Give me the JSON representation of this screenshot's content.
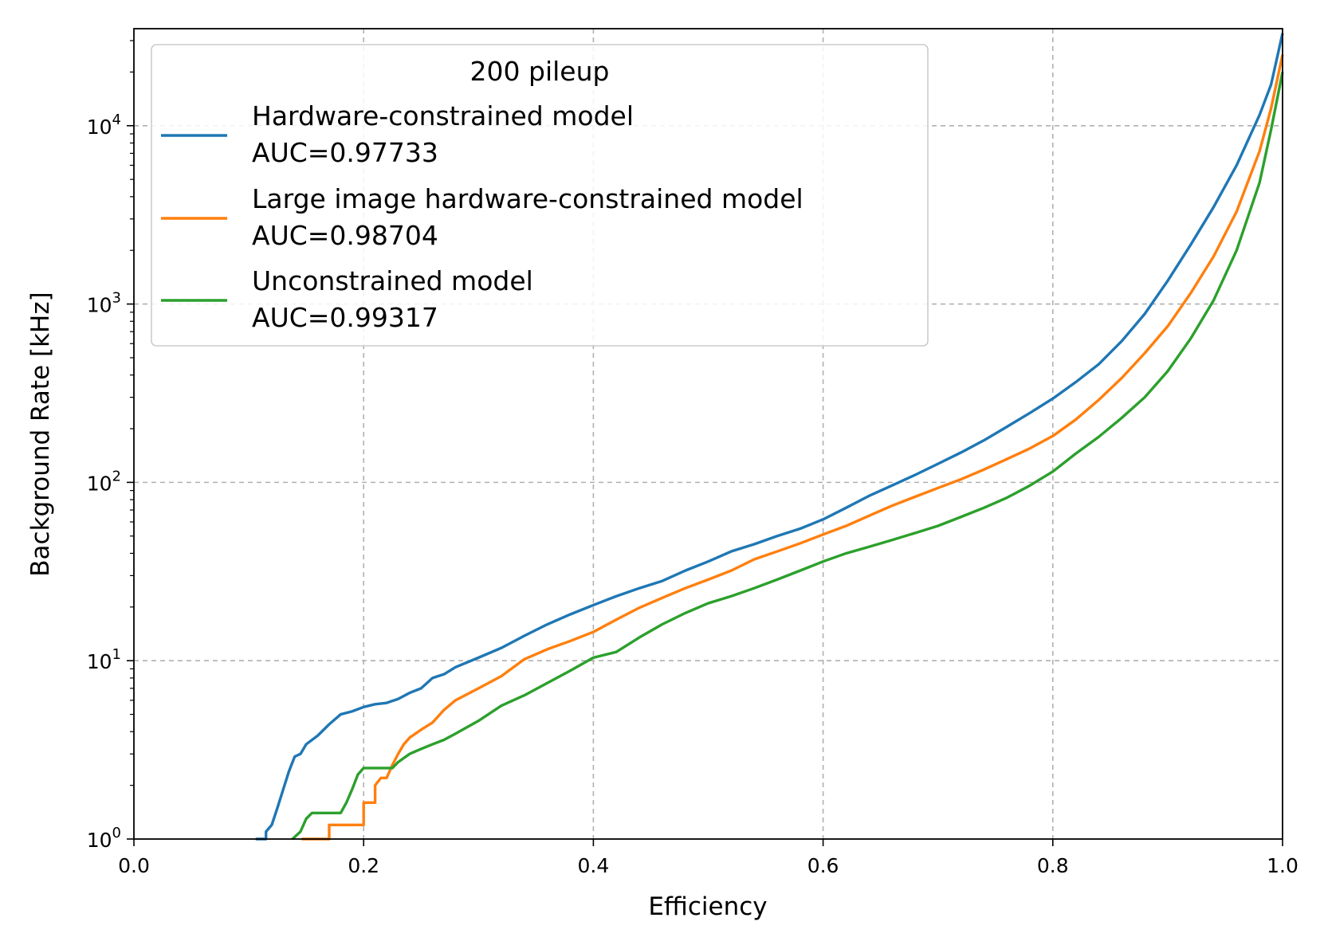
{
  "chart_data": {
    "type": "line",
    "title": "",
    "xlabel": "Efficiency",
    "ylabel": "Background Rate [kHz]",
    "xscale": "linear",
    "yscale": "log",
    "xlim": [
      0.0,
      1.0
    ],
    "ylim": [
      1,
      35000
    ],
    "grid": true,
    "x_ticks": [
      0.0,
      0.2,
      0.4,
      0.6,
      0.8,
      1.0
    ],
    "x_tick_labels": [
      "0.0",
      "0.2",
      "0.4",
      "0.6",
      "0.8",
      "1.0"
    ],
    "y_ticks": [
      {
        "value": 1,
        "base": "10",
        "exp": "0"
      },
      {
        "value": 10,
        "base": "10",
        "exp": "1"
      },
      {
        "value": 100,
        "base": "10",
        "exp": "2"
      },
      {
        "value": 1000,
        "base": "10",
        "exp": "3"
      },
      {
        "value": 10000,
        "base": "10",
        "exp": "4"
      }
    ],
    "legend": {
      "title": "200 pileup",
      "location": "upper-left"
    },
    "series": [
      {
        "name": "Hardware-constrained model",
        "auc_label": "AUC=0.97733",
        "color": "#1f77b4",
        "points": [
          [
            0.106,
            1.0
          ],
          [
            0.115,
            1.0
          ],
          [
            0.115,
            1.1
          ],
          [
            0.12,
            1.2
          ],
          [
            0.125,
            1.5
          ],
          [
            0.13,
            1.9
          ],
          [
            0.135,
            2.4
          ],
          [
            0.14,
            2.9
          ],
          [
            0.145,
            3.0
          ],
          [
            0.15,
            3.4
          ],
          [
            0.16,
            3.8
          ],
          [
            0.17,
            4.4
          ],
          [
            0.18,
            5.0
          ],
          [
            0.19,
            5.2
          ],
          [
            0.2,
            5.5
          ],
          [
            0.21,
            5.7
          ],
          [
            0.22,
            5.8
          ],
          [
            0.23,
            6.1
          ],
          [
            0.24,
            6.6
          ],
          [
            0.25,
            7.0
          ],
          [
            0.26,
            8.0
          ],
          [
            0.27,
            8.4
          ],
          [
            0.28,
            9.2
          ],
          [
            0.3,
            10.4
          ],
          [
            0.32,
            11.8
          ],
          [
            0.34,
            13.8
          ],
          [
            0.36,
            16.0
          ],
          [
            0.38,
            18.2
          ],
          [
            0.4,
            20.5
          ],
          [
            0.42,
            23.0
          ],
          [
            0.44,
            25.5
          ],
          [
            0.46,
            28.0
          ],
          [
            0.48,
            32.0
          ],
          [
            0.5,
            36.0
          ],
          [
            0.52,
            41.0
          ],
          [
            0.54,
            45.0
          ],
          [
            0.56,
            50.0
          ],
          [
            0.58,
            55.0
          ],
          [
            0.6,
            62.0
          ],
          [
            0.62,
            72.0
          ],
          [
            0.64,
            84.0
          ],
          [
            0.66,
            96.0
          ],
          [
            0.68,
            110.0
          ],
          [
            0.7,
            127.0
          ],
          [
            0.72,
            147.0
          ],
          [
            0.74,
            172.0
          ],
          [
            0.76,
            205.0
          ],
          [
            0.78,
            245.0
          ],
          [
            0.8,
            295.0
          ],
          [
            0.82,
            365.0
          ],
          [
            0.84,
            460.0
          ],
          [
            0.86,
            620.0
          ],
          [
            0.88,
            880.0
          ],
          [
            0.9,
            1350.0
          ],
          [
            0.92,
            2150.0
          ],
          [
            0.94,
            3500.0
          ],
          [
            0.96,
            6000.0
          ],
          [
            0.98,
            11500.0
          ],
          [
            0.99,
            17000.0
          ],
          [
            1.0,
            33000.0
          ]
        ]
      },
      {
        "name": "Large image hardware-constrained model",
        "auc_label": "AUC=0.98704",
        "color": "#ff7f0e",
        "points": [
          [
            0.146,
            1.0
          ],
          [
            0.17,
            1.0
          ],
          [
            0.17,
            1.2
          ],
          [
            0.2,
            1.2
          ],
          [
            0.2,
            1.6
          ],
          [
            0.21,
            1.6
          ],
          [
            0.21,
            2.0
          ],
          [
            0.215,
            2.2
          ],
          [
            0.22,
            2.2
          ],
          [
            0.225,
            2.6
          ],
          [
            0.23,
            3.0
          ],
          [
            0.235,
            3.4
          ],
          [
            0.24,
            3.7
          ],
          [
            0.25,
            4.1
          ],
          [
            0.26,
            4.5
          ],
          [
            0.27,
            5.3
          ],
          [
            0.28,
            6.0
          ],
          [
            0.3,
            7.0
          ],
          [
            0.32,
            8.2
          ],
          [
            0.34,
            10.2
          ],
          [
            0.36,
            11.6
          ],
          [
            0.38,
            12.9
          ],
          [
            0.4,
            14.5
          ],
          [
            0.42,
            17.0
          ],
          [
            0.44,
            19.8
          ],
          [
            0.46,
            22.5
          ],
          [
            0.48,
            25.5
          ],
          [
            0.5,
            28.5
          ],
          [
            0.52,
            32.0
          ],
          [
            0.54,
            37.0
          ],
          [
            0.56,
            41.0
          ],
          [
            0.58,
            45.5
          ],
          [
            0.6,
            51.0
          ],
          [
            0.62,
            57.0
          ],
          [
            0.64,
            65.0
          ],
          [
            0.66,
            74.0
          ],
          [
            0.68,
            83.0
          ],
          [
            0.7,
            93.0
          ],
          [
            0.72,
            104.0
          ],
          [
            0.74,
            118.0
          ],
          [
            0.76,
            135.0
          ],
          [
            0.78,
            155.0
          ],
          [
            0.8,
            182.0
          ],
          [
            0.82,
            225.0
          ],
          [
            0.84,
            290.0
          ],
          [
            0.86,
            385.0
          ],
          [
            0.88,
            530.0
          ],
          [
            0.9,
            750.0
          ],
          [
            0.92,
            1150.0
          ],
          [
            0.94,
            1850.0
          ],
          [
            0.96,
            3300.0
          ],
          [
            0.98,
            7200.0
          ],
          [
            0.99,
            12500.0
          ],
          [
            1.0,
            25000.0
          ]
        ]
      },
      {
        "name": "Unconstrained model",
        "auc_label": "AUC=0.99317",
        "color": "#2ca02c",
        "points": [
          [
            0.138,
            1.0
          ],
          [
            0.145,
            1.1
          ],
          [
            0.15,
            1.3
          ],
          [
            0.155,
            1.4
          ],
          [
            0.18,
            1.4
          ],
          [
            0.185,
            1.6
          ],
          [
            0.19,
            1.9
          ],
          [
            0.195,
            2.3
          ],
          [
            0.2,
            2.5
          ],
          [
            0.225,
            2.5
          ],
          [
            0.23,
            2.7
          ],
          [
            0.24,
            3.0
          ],
          [
            0.25,
            3.2
          ],
          [
            0.26,
            3.4
          ],
          [
            0.27,
            3.6
          ],
          [
            0.28,
            3.9
          ],
          [
            0.3,
            4.6
          ],
          [
            0.32,
            5.6
          ],
          [
            0.34,
            6.4
          ],
          [
            0.36,
            7.5
          ],
          [
            0.38,
            8.8
          ],
          [
            0.4,
            10.4
          ],
          [
            0.42,
            11.2
          ],
          [
            0.44,
            13.5
          ],
          [
            0.46,
            16.0
          ],
          [
            0.48,
            18.5
          ],
          [
            0.5,
            21.0
          ],
          [
            0.52,
            23.0
          ],
          [
            0.54,
            25.5
          ],
          [
            0.56,
            28.5
          ],
          [
            0.58,
            32.0
          ],
          [
            0.6,
            36.0
          ],
          [
            0.62,
            40.0
          ],
          [
            0.64,
            43.5
          ],
          [
            0.66,
            47.5
          ],
          [
            0.68,
            52.0
          ],
          [
            0.7,
            57.0
          ],
          [
            0.72,
            64.0
          ],
          [
            0.74,
            72.0
          ],
          [
            0.76,
            82.0
          ],
          [
            0.78,
            96.0
          ],
          [
            0.8,
            115.0
          ],
          [
            0.82,
            145.0
          ],
          [
            0.84,
            180.0
          ],
          [
            0.86,
            230.0
          ],
          [
            0.88,
            300.0
          ],
          [
            0.9,
            420.0
          ],
          [
            0.92,
            640.0
          ],
          [
            0.94,
            1050.0
          ],
          [
            0.96,
            2000.0
          ],
          [
            0.98,
            4800.0
          ],
          [
            0.99,
            9500.0
          ],
          [
            1.0,
            20000.0
          ]
        ]
      }
    ]
  }
}
